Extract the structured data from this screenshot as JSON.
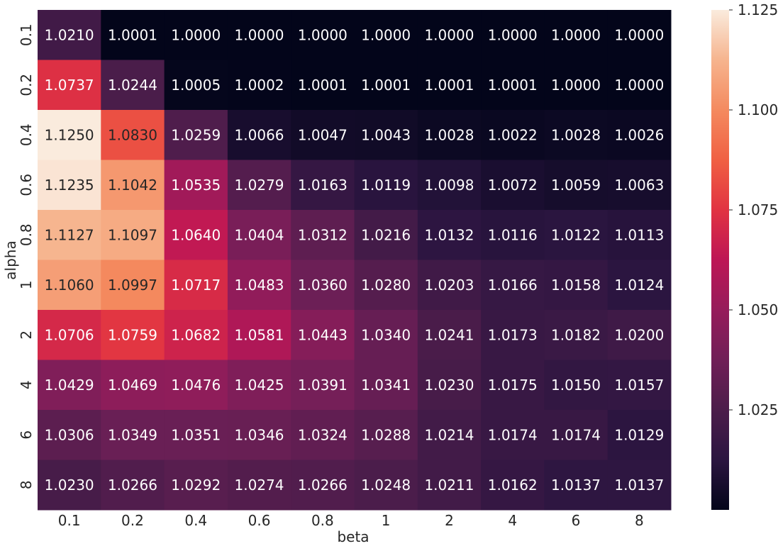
{
  "chart_data": {
    "type": "heatmap",
    "title": "",
    "xlabel": "beta",
    "ylabel": "alpha",
    "x_categories": [
      "0.1",
      "0.2",
      "0.4",
      "0.6",
      "0.8",
      "1",
      "2",
      "4",
      "6",
      "8"
    ],
    "y_categories": [
      "0.1",
      "0.2",
      "0.4",
      "0.6",
      "0.8",
      "1",
      "2",
      "4",
      "6",
      "8"
    ],
    "values": [
      [
        "1.0210",
        "1.0001",
        "1.0000",
        "1.0000",
        "1.0000",
        "1.0000",
        "1.0000",
        "1.0000",
        "1.0000",
        "1.0000"
      ],
      [
        "1.0737",
        "1.0244",
        "1.0005",
        "1.0002",
        "1.0001",
        "1.0001",
        "1.0001",
        "1.0001",
        "1.0000",
        "1.0000"
      ],
      [
        "1.1250",
        "1.0830",
        "1.0259",
        "1.0066",
        "1.0047",
        "1.0043",
        "1.0028",
        "1.0022",
        "1.0028",
        "1.0026"
      ],
      [
        "1.1235",
        "1.1042",
        "1.0535",
        "1.0279",
        "1.0163",
        "1.0119",
        "1.0098",
        "1.0072",
        "1.0059",
        "1.0063"
      ],
      [
        "1.1127",
        "1.1097",
        "1.0640",
        "1.0404",
        "1.0312",
        "1.0216",
        "1.0132",
        "1.0116",
        "1.0122",
        "1.0113"
      ],
      [
        "1.1060",
        "1.0997",
        "1.0717",
        "1.0483",
        "1.0360",
        "1.0280",
        "1.0203",
        "1.0166",
        "1.0158",
        "1.0124"
      ],
      [
        "1.0706",
        "1.0759",
        "1.0682",
        "1.0581",
        "1.0443",
        "1.0340",
        "1.0241",
        "1.0173",
        "1.0182",
        "1.0200"
      ],
      [
        "1.0429",
        "1.0469",
        "1.0476",
        "1.0425",
        "1.0391",
        "1.0341",
        "1.0230",
        "1.0175",
        "1.0150",
        "1.0157"
      ],
      [
        "1.0306",
        "1.0349",
        "1.0351",
        "1.0346",
        "1.0324",
        "1.0288",
        "1.0214",
        "1.0174",
        "1.0174",
        "1.0129"
      ],
      [
        "1.0230",
        "1.0266",
        "1.0292",
        "1.0274",
        "1.0266",
        "1.0248",
        "1.0211",
        "1.0162",
        "1.0137",
        "1.0137"
      ]
    ],
    "colorbar": {
      "min": 1.0,
      "max": 1.125,
      "ticks": [
        "1.025",
        "1.050",
        "1.075",
        "1.100",
        "1.125"
      ],
      "colormap": "rocket",
      "stops": [
        "#03051a",
        "#2b1540",
        "#4c1d4b",
        "#701f57",
        "#961c5b",
        "#bd1655",
        "#e13342",
        "#f06043",
        "#f48a5f",
        "#f6b48e",
        "#faebdd"
      ]
    },
    "annotation_text_colors": {
      "on_light": "#262626",
      "on_dark": "#ffffff"
    },
    "grid": false,
    "legend": "colorbar-right"
  }
}
